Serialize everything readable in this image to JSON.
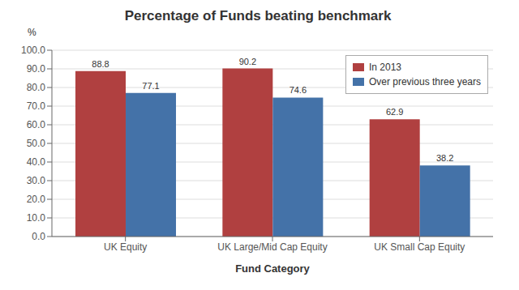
{
  "chart_data": {
    "type": "bar",
    "title": "Percentage of Funds beating benchmark",
    "xlabel": "Fund Category",
    "ylabel": "%",
    "categories": [
      "UK Equity",
      "UK Large/Mid Cap Equity",
      "UK Small Cap Equity"
    ],
    "series": [
      {
        "name": "In 2013",
        "color": "#B04040",
        "values": [
          88.8,
          90.2,
          62.9
        ]
      },
      {
        "name": "Over previous three years",
        "color": "#4472A8",
        "values": [
          77.1,
          74.6,
          38.2
        ]
      }
    ],
    "ylim": [
      0,
      100
    ],
    "yticks": [
      {
        "value": 0.0,
        "label": "0.0"
      },
      {
        "value": 10.0,
        "label": "10.0"
      },
      {
        "value": 20.0,
        "label": "20.0"
      },
      {
        "value": 30.0,
        "label": "30.0"
      },
      {
        "value": 40.0,
        "label": "40.0"
      },
      {
        "value": 50.0,
        "label": "50.0"
      },
      {
        "value": 60.0,
        "label": "60.0"
      },
      {
        "value": 70.0,
        "label": "70.0"
      },
      {
        "value": 80.0,
        "label": "80.0"
      },
      {
        "value": 90.0,
        "label": "90.0"
      },
      {
        "value": 100.0,
        "label": "100.0"
      }
    ],
    "grid": true,
    "legend": "upper right",
    "data_labels": true
  }
}
